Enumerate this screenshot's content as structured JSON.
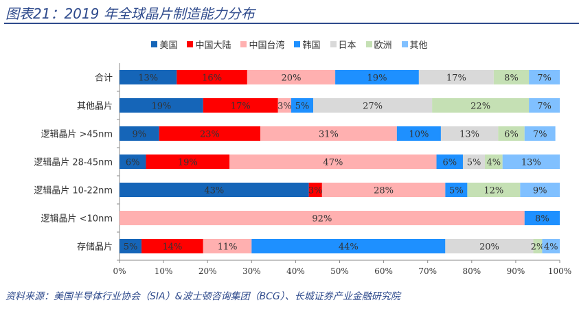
{
  "header": {
    "title": "图表21：2019 年全球晶片制造能力分布"
  },
  "source": "资料来源：美国半导体行业协会（SIA）&波士顿咨询集团（BCG）、长城证券产业金融研究院",
  "chart_data": {
    "type": "bar",
    "orientation": "horizontal",
    "stacked": true,
    "title": "",
    "legend_position": "top",
    "xlim": [
      0,
      100
    ],
    "xticks": [
      "0%",
      "10%",
      "20%",
      "30%",
      "40%",
      "50%",
      "60%",
      "70%",
      "80%",
      "90%",
      "100%"
    ],
    "categories": [
      "合计",
      "其他晶片",
      "逻辑晶片 >45nm",
      "逻辑晶片 28-45nm",
      "逻辑晶片 10-22nm",
      "逻辑晶片 <10nm",
      "存储晶片"
    ],
    "series": [
      {
        "name": "美国",
        "color": "#1565b8",
        "values": [
          13,
          19,
          9,
          6,
          43,
          0,
          5
        ]
      },
      {
        "name": "中国大陆",
        "color": "#ff0000",
        "values": [
          16,
          17,
          23,
          19,
          3,
          0,
          14
        ]
      },
      {
        "name": "中国台湾",
        "color": "#ffb0b0",
        "values": [
          20,
          3,
          31,
          47,
          28,
          92,
          11
        ]
      },
      {
        "name": "韩国",
        "color": "#1e90ff",
        "values": [
          19,
          5,
          10,
          6,
          5,
          8,
          44
        ]
      },
      {
        "name": "日本",
        "color": "#d9d9d9",
        "values": [
          17,
          27,
          13,
          5,
          0,
          0,
          20
        ]
      },
      {
        "name": "欧洲",
        "color": "#c5e0b4",
        "values": [
          8,
          22,
          6,
          4,
          12,
          0,
          2
        ]
      },
      {
        "name": "其他",
        "color": "#80c0ff",
        "values": [
          7,
          7,
          7,
          13,
          9,
          0,
          4
        ]
      }
    ]
  }
}
